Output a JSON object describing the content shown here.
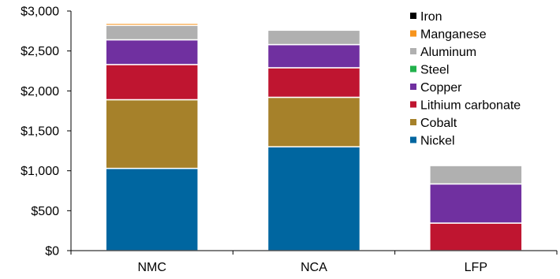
{
  "chart_data": {
    "type": "bar",
    "stacked": true,
    "categories": [
      "NMC",
      "NCA",
      "LFP"
    ],
    "ylim": [
      0,
      3000
    ],
    "yticks": [
      0,
      500,
      1000,
      1500,
      2000,
      2500,
      3000
    ],
    "ytick_labels": [
      "$0",
      "$500",
      "$1,000",
      "$1,500",
      "$2,000",
      "$2,500",
      "$3,000"
    ],
    "grid": false,
    "legend_position": "top-right",
    "series": [
      {
        "name": "Nickel",
        "color": "#0066a0",
        "values": [
          1030,
          1300,
          0
        ]
      },
      {
        "name": "Cobalt",
        "color": "#a6812a",
        "values": [
          860,
          620,
          0
        ]
      },
      {
        "name": "Lithium carbonate",
        "color": "#bf1530",
        "values": [
          440,
          370,
          345
        ]
      },
      {
        "name": "Steel",
        "color": "#22b14c",
        "values": [
          0,
          0,
          0
        ]
      },
      {
        "name": "Copper",
        "color": "#7030a0",
        "values": [
          310,
          290,
          490
        ]
      },
      {
        "name": "Aluminum",
        "color": "#b0b0b0",
        "values": [
          180,
          180,
          230
        ]
      },
      {
        "name": "Manganese",
        "color": "#f7941d",
        "values": [
          25,
          0,
          0
        ]
      },
      {
        "name": "Iron",
        "color": "#000000",
        "values": [
          0,
          0,
          0
        ]
      }
    ],
    "legend_order": [
      "Iron",
      "Manganese",
      "Aluminum",
      "Steel",
      "Copper",
      "Lithium carbonate",
      "Cobalt",
      "Nickel"
    ]
  }
}
